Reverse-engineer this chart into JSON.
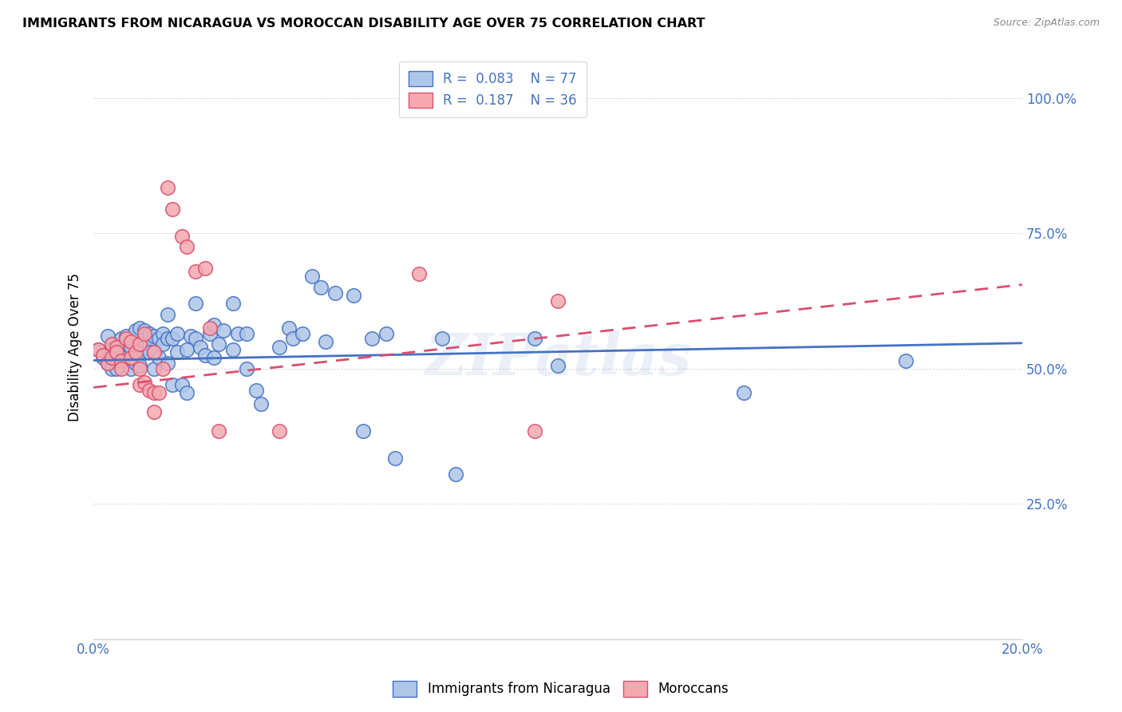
{
  "title": "IMMIGRANTS FROM NICARAGUA VS MOROCCAN DISABILITY AGE OVER 75 CORRELATION CHART",
  "source": "Source: ZipAtlas.com",
  "ylabel": "Disability Age Over 75",
  "x_min": 0.0,
  "x_max": 0.2,
  "y_min": 0.0,
  "y_max": 1.08,
  "x_ticks": [
    0.0,
    0.05,
    0.1,
    0.15,
    0.2
  ],
  "y_ticks": [
    0.25,
    0.5,
    0.75,
    1.0
  ],
  "y_tick_labels": [
    "25.0%",
    "50.0%",
    "75.0%",
    "100.0%"
  ],
  "color_nicaragua": "#aec6e8",
  "color_morocco": "#f4a9b0",
  "color_blue": "#4472c4",
  "color_pink": "#d94f6e",
  "scatter_nicaragua": [
    [
      0.001,
      0.535
    ],
    [
      0.002,
      0.52
    ],
    [
      0.003,
      0.56
    ],
    [
      0.003,
      0.51
    ],
    [
      0.004,
      0.5
    ],
    [
      0.004,
      0.535
    ],
    [
      0.005,
      0.53
    ],
    [
      0.005,
      0.5
    ],
    [
      0.006,
      0.545
    ],
    [
      0.006,
      0.555
    ],
    [
      0.007,
      0.56
    ],
    [
      0.007,
      0.52
    ],
    [
      0.008,
      0.54
    ],
    [
      0.008,
      0.5
    ],
    [
      0.009,
      0.57
    ],
    [
      0.009,
      0.51
    ],
    [
      0.01,
      0.575
    ],
    [
      0.01,
      0.53
    ],
    [
      0.01,
      0.505
    ],
    [
      0.011,
      0.57
    ],
    [
      0.011,
      0.555
    ],
    [
      0.011,
      0.54
    ],
    [
      0.012,
      0.565
    ],
    [
      0.012,
      0.545
    ],
    [
      0.012,
      0.53
    ],
    [
      0.013,
      0.56
    ],
    [
      0.013,
      0.53
    ],
    [
      0.013,
      0.5
    ],
    [
      0.014,
      0.555
    ],
    [
      0.014,
      0.52
    ],
    [
      0.015,
      0.565
    ],
    [
      0.015,
      0.545
    ],
    [
      0.016,
      0.6
    ],
    [
      0.016,
      0.555
    ],
    [
      0.016,
      0.51
    ],
    [
      0.017,
      0.555
    ],
    [
      0.017,
      0.47
    ],
    [
      0.018,
      0.565
    ],
    [
      0.018,
      0.53
    ],
    [
      0.019,
      0.47
    ],
    [
      0.02,
      0.535
    ],
    [
      0.02,
      0.455
    ],
    [
      0.021,
      0.56
    ],
    [
      0.022,
      0.62
    ],
    [
      0.022,
      0.555
    ],
    [
      0.023,
      0.54
    ],
    [
      0.024,
      0.525
    ],
    [
      0.025,
      0.565
    ],
    [
      0.026,
      0.58
    ],
    [
      0.026,
      0.52
    ],
    [
      0.027,
      0.545
    ],
    [
      0.028,
      0.57
    ],
    [
      0.03,
      0.62
    ],
    [
      0.03,
      0.535
    ],
    [
      0.031,
      0.565
    ],
    [
      0.033,
      0.565
    ],
    [
      0.033,
      0.5
    ],
    [
      0.035,
      0.46
    ],
    [
      0.036,
      0.435
    ],
    [
      0.04,
      0.54
    ],
    [
      0.042,
      0.575
    ],
    [
      0.043,
      0.555
    ],
    [
      0.045,
      0.565
    ],
    [
      0.047,
      0.67
    ],
    [
      0.049,
      0.65
    ],
    [
      0.05,
      0.55
    ],
    [
      0.052,
      0.64
    ],
    [
      0.056,
      0.635
    ],
    [
      0.058,
      0.385
    ],
    [
      0.06,
      0.555
    ],
    [
      0.063,
      0.565
    ],
    [
      0.065,
      0.335
    ],
    [
      0.075,
      0.555
    ],
    [
      0.078,
      0.305
    ],
    [
      0.095,
      0.555
    ],
    [
      0.1,
      0.505
    ],
    [
      0.14,
      0.455
    ],
    [
      0.175,
      0.515
    ]
  ],
  "scatter_morocco": [
    [
      0.001,
      0.535
    ],
    [
      0.002,
      0.525
    ],
    [
      0.003,
      0.51
    ],
    [
      0.004,
      0.545
    ],
    [
      0.004,
      0.52
    ],
    [
      0.005,
      0.54
    ],
    [
      0.005,
      0.53
    ],
    [
      0.006,
      0.515
    ],
    [
      0.006,
      0.5
    ],
    [
      0.007,
      0.555
    ],
    [
      0.008,
      0.55
    ],
    [
      0.008,
      0.52
    ],
    [
      0.009,
      0.53
    ],
    [
      0.01,
      0.545
    ],
    [
      0.01,
      0.5
    ],
    [
      0.01,
      0.47
    ],
    [
      0.011,
      0.565
    ],
    [
      0.011,
      0.475
    ],
    [
      0.012,
      0.46
    ],
    [
      0.013,
      0.53
    ],
    [
      0.013,
      0.455
    ],
    [
      0.013,
      0.42
    ],
    [
      0.014,
      0.455
    ],
    [
      0.015,
      0.5
    ],
    [
      0.016,
      0.835
    ],
    [
      0.017,
      0.795
    ],
    [
      0.019,
      0.745
    ],
    [
      0.02,
      0.725
    ],
    [
      0.022,
      0.68
    ],
    [
      0.024,
      0.685
    ],
    [
      0.025,
      0.575
    ],
    [
      0.027,
      0.385
    ],
    [
      0.04,
      0.385
    ],
    [
      0.07,
      0.675
    ],
    [
      0.095,
      0.385
    ],
    [
      0.1,
      0.625
    ]
  ],
  "trendline_nicaragua": [
    0.0,
    0.2,
    0.515,
    0.547
  ],
  "trendline_morocco": [
    0.0,
    0.2,
    0.465,
    0.655
  ],
  "watermark": "ZIPatlas",
  "figsize": [
    14.06,
    8.92
  ],
  "dpi": 100
}
